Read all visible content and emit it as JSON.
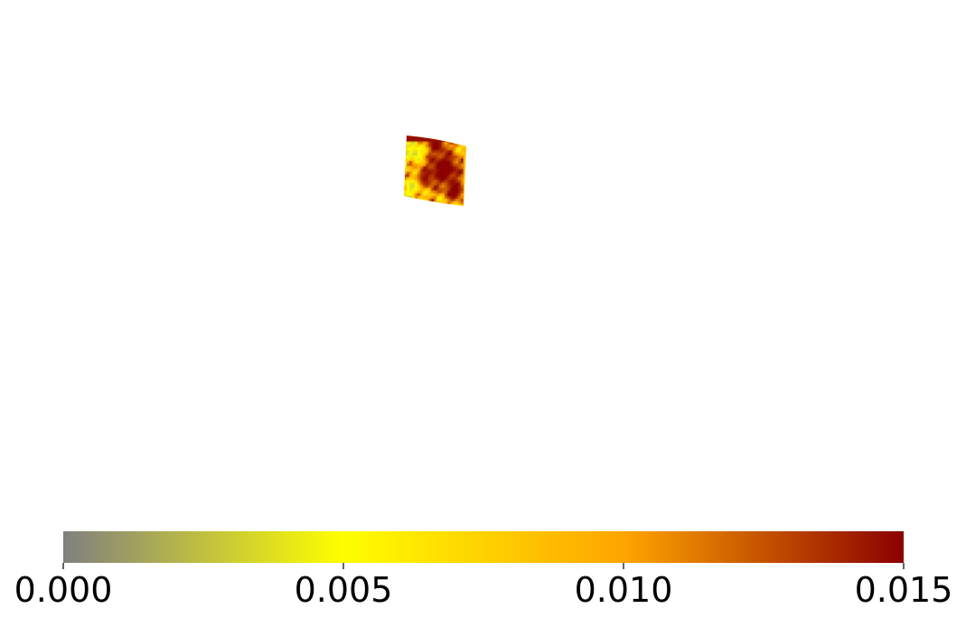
{
  "chart_data": {
    "type": "heatmap",
    "title": "",
    "xlabel": "",
    "ylabel": "",
    "colorbar": {
      "orientation": "horizontal",
      "placement": "bottom",
      "range": [
        0.0,
        0.015
      ],
      "ticks": [
        0.0,
        0.005,
        0.01,
        0.015
      ],
      "tick_labels": [
        "0.000",
        "0.005",
        "0.010",
        "0.015"
      ],
      "colormap": [
        {
          "value": 0.0,
          "color": "#808080"
        },
        {
          "value": 0.005,
          "color": "#ffff00"
        },
        {
          "value": 0.01,
          "color": "#ffa500"
        },
        {
          "value": 0.015,
          "color": "#8b0000"
        }
      ]
    },
    "grid": false,
    "axes_visible": false
  }
}
